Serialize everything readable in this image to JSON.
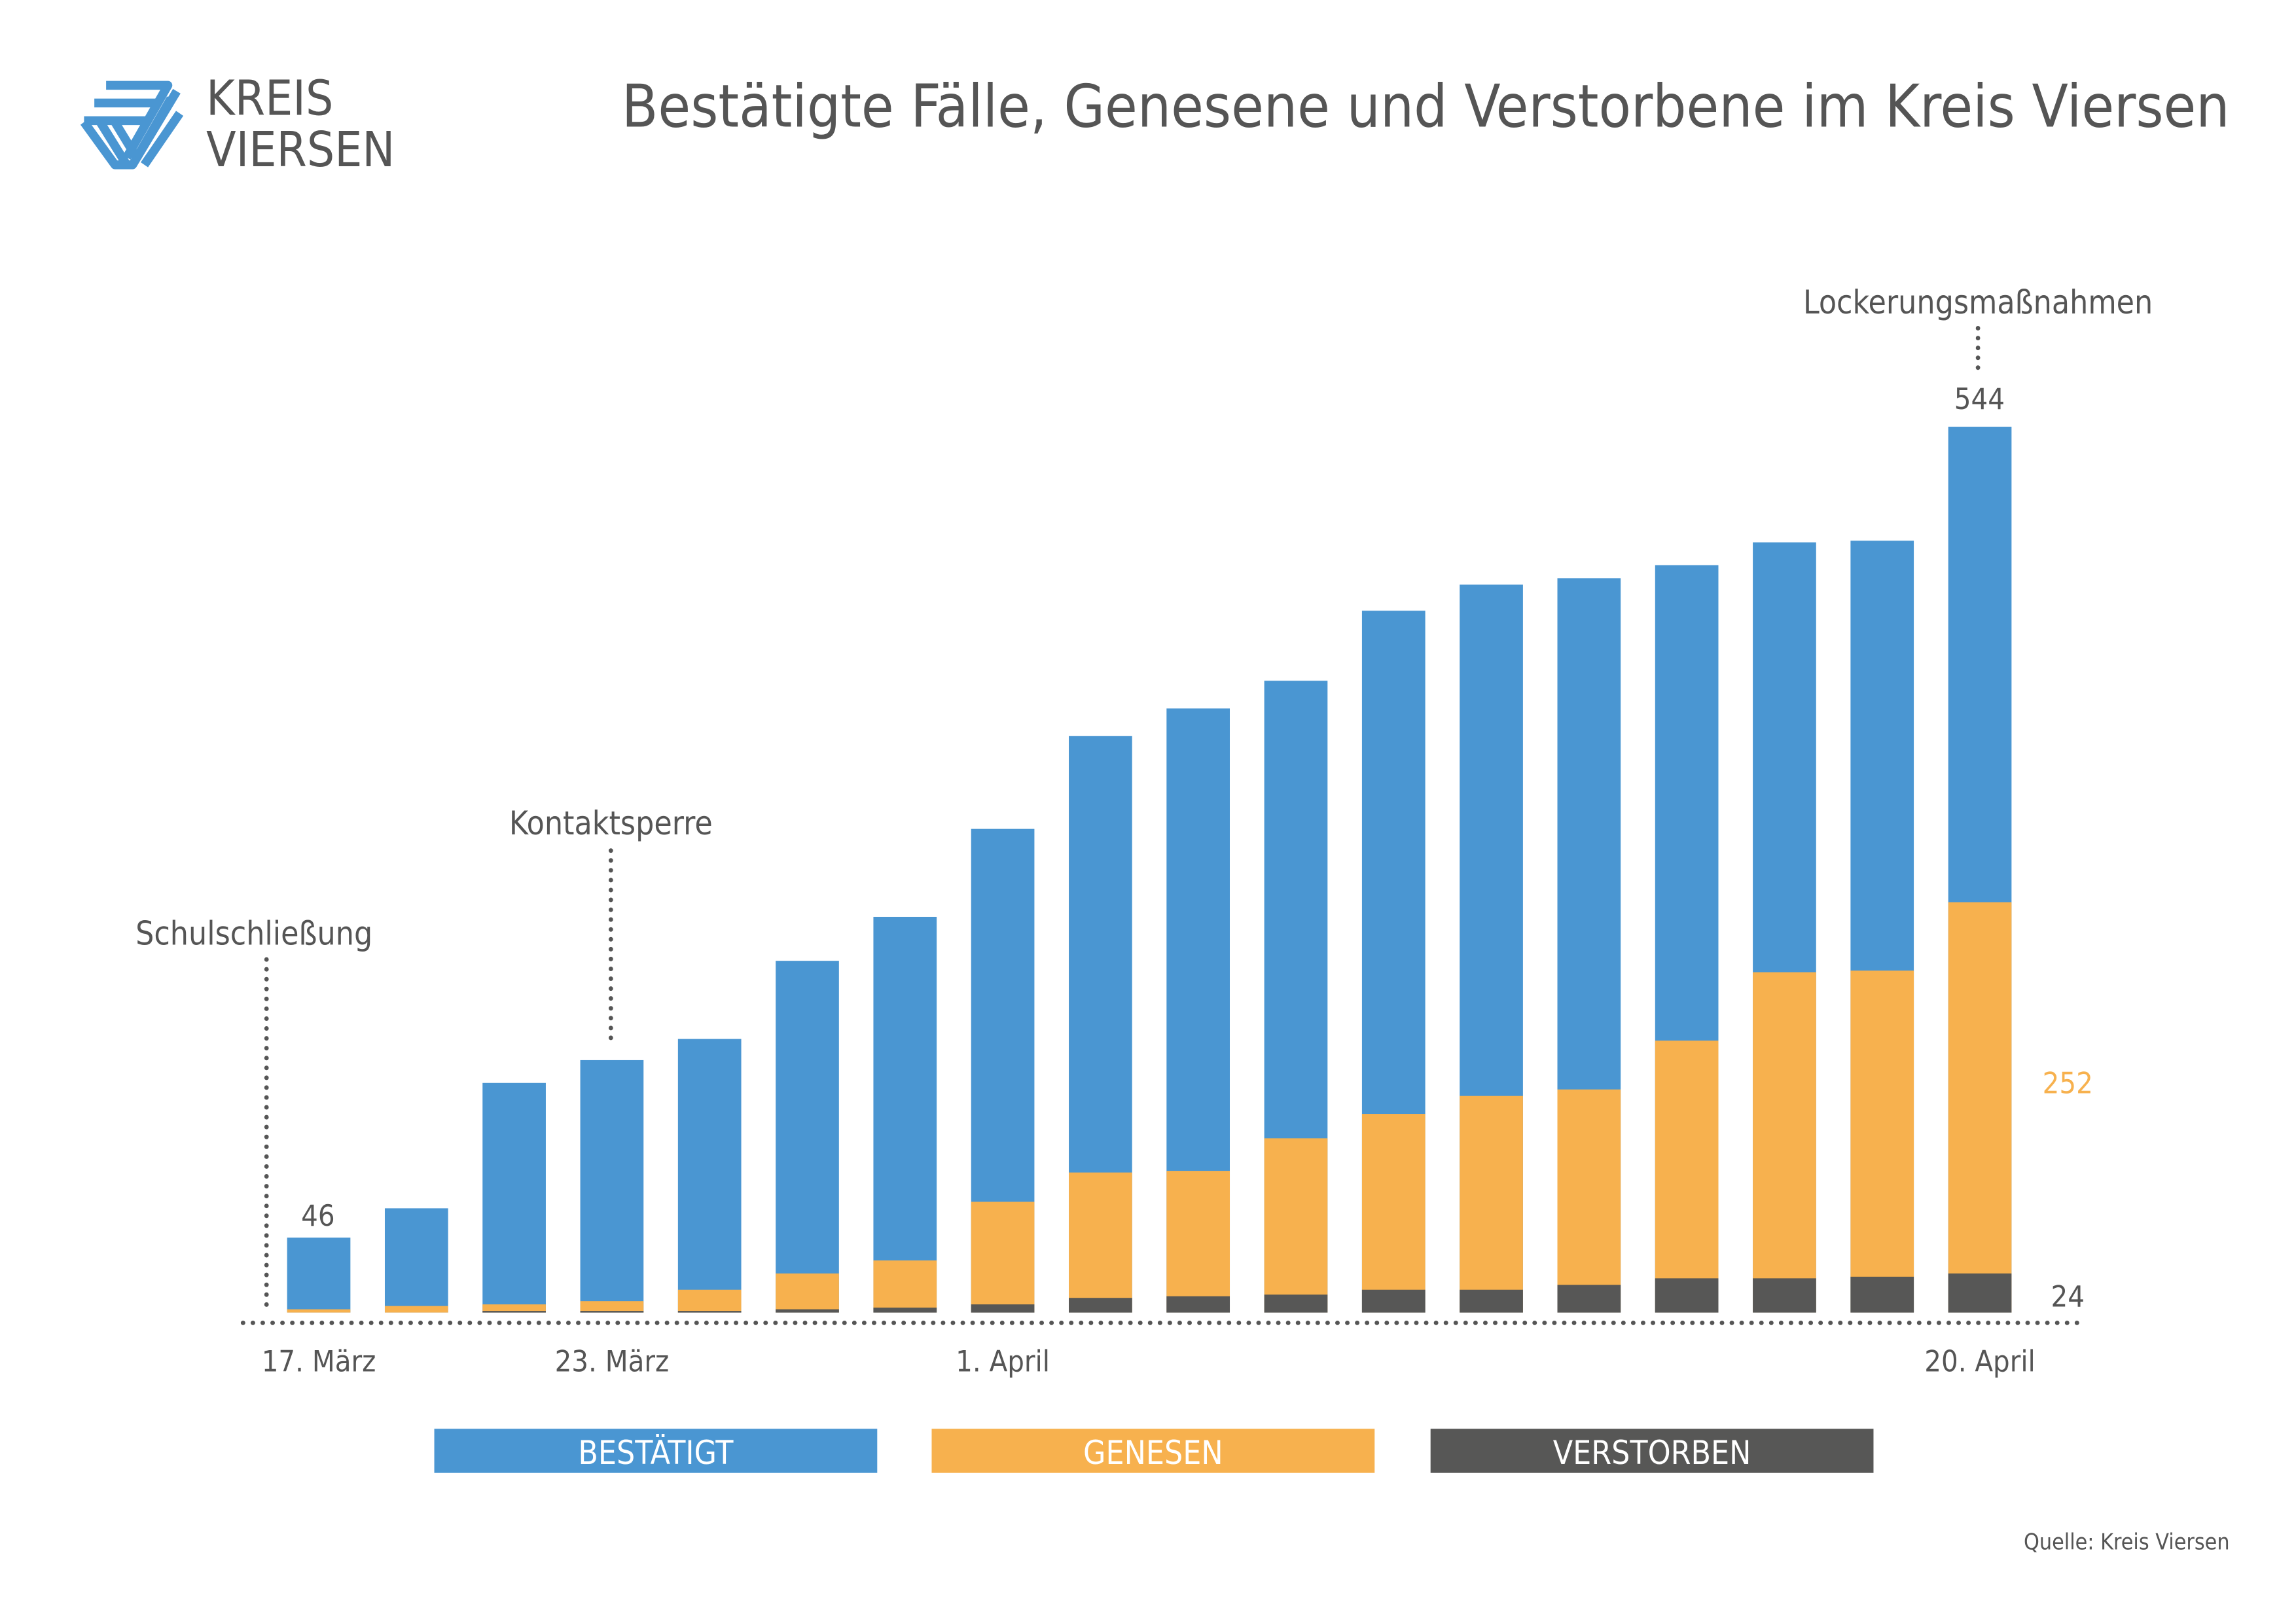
{
  "logo": {
    "line1": "KREIS",
    "line2": "VIERSEN"
  },
  "colors": {
    "confirmed": "#4a96d2",
    "recovered": "#f7b14e",
    "deceased": "#575756",
    "text": "#555555"
  },
  "chart_data": {
    "type": "bar",
    "title": "Bestätigte Fälle, Genesene und Verstorbene im Kreis Viersen",
    "xlabel": "",
    "ylabel": "",
    "ylim": [
      0,
      544
    ],
    "grid": false,
    "x_tick_labels": [
      {
        "index": 0,
        "label": "17. März"
      },
      {
        "index": 3,
        "label": "23. März"
      },
      {
        "index": 7,
        "label": "1. April"
      },
      {
        "index": 17,
        "label": "20. April"
      }
    ],
    "series": [
      {
        "name": "BESTÄTIGT",
        "values": [
          46,
          64,
          141,
          155,
          168,
          216,
          243,
          297,
          354,
          371,
          388,
          431,
          447,
          451,
          459,
          473,
          474,
          544
        ]
      },
      {
        "name": "GENESEN",
        "values": [
          2,
          4,
          5,
          7,
          14,
          24,
          32,
          68,
          86,
          87,
          107,
          122,
          133,
          137,
          167,
          209,
          210,
          252
        ]
      },
      {
        "name": "VERSTORBEN",
        "values": [
          0,
          0,
          1,
          1,
          1,
          2,
          3,
          5,
          9,
          10,
          11,
          14,
          14,
          17,
          21,
          21,
          22,
          24
        ]
      }
    ],
    "data_labels": {
      "first_confirmed": "46",
      "last_confirmed": "544",
      "last_recovered": "252",
      "last_deceased": "24"
    },
    "annotations": [
      {
        "index": 0,
        "text": "Schulschließung"
      },
      {
        "index": 3,
        "text": "Kontaktsperre"
      },
      {
        "index": 17,
        "text": "Lockerungsmaßnahmen"
      }
    ],
    "legend": [
      "BESTÄTIGT",
      "GENESEN",
      "VERSTORBEN"
    ],
    "legend_placement": "bottom",
    "source": "Quelle: Kreis Viersen"
  }
}
